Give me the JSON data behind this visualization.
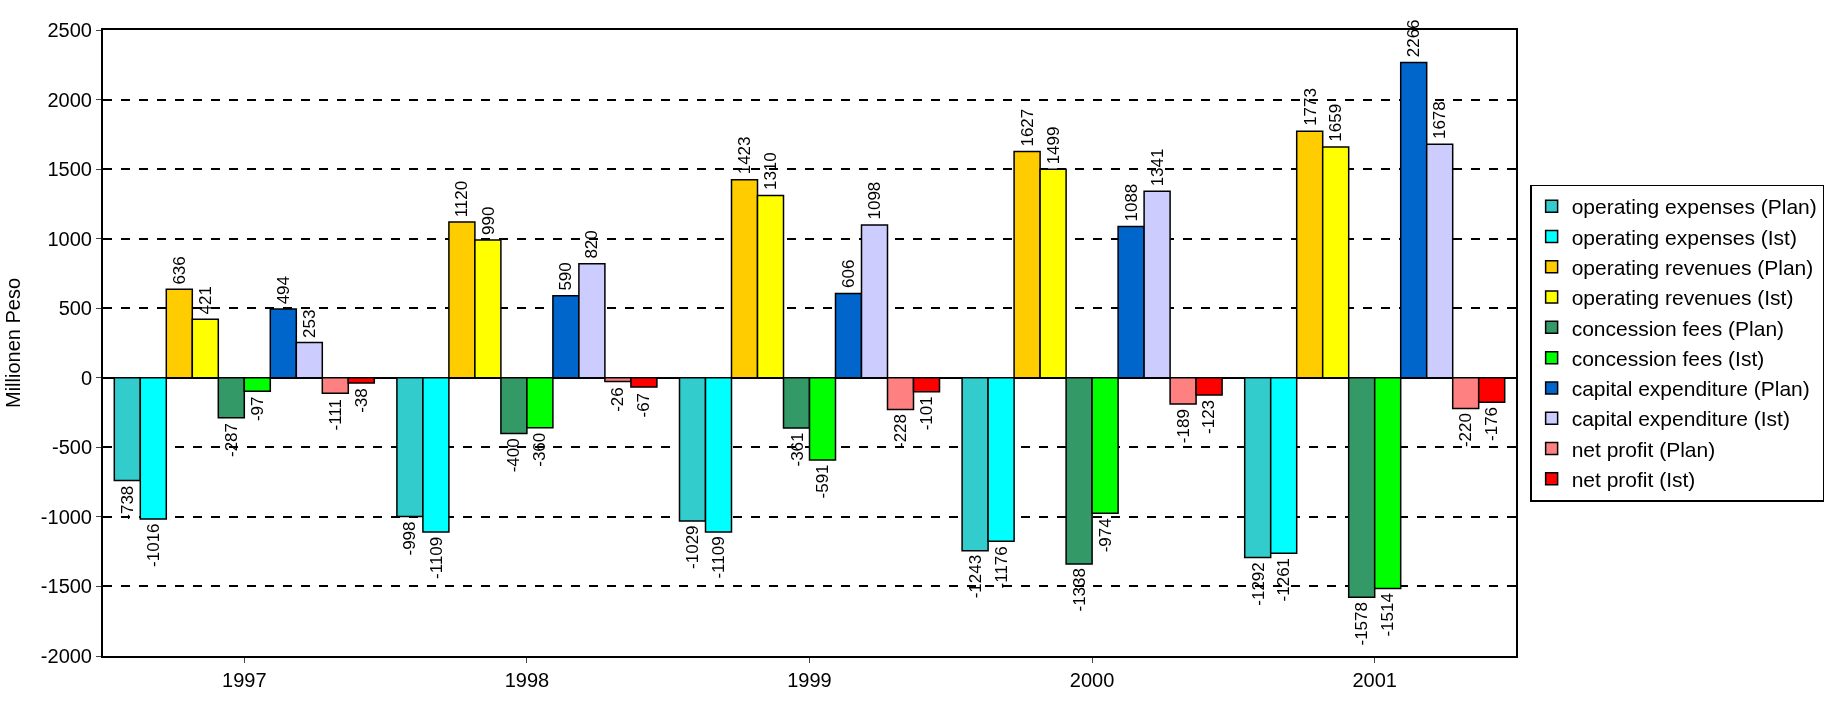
{
  "chart_data": {
    "type": "bar",
    "ylabel": "Millionen Peso",
    "categories": [
      "1997",
      "1998",
      "1999",
      "2000",
      "2001"
    ],
    "series": [
      {
        "name": "operating expenses (Plan)",
        "color": "#33cccc",
        "values": [
          -738,
          -998,
          -1029,
          -1243,
          -1292
        ]
      },
      {
        "name": "operating expenses (Ist)",
        "color": "#00ffff",
        "values": [
          -1016,
          -1109,
          -1109,
          -1176,
          -1261
        ]
      },
      {
        "name": "operating revenues (Plan)",
        "color": "#ffcc00",
        "values": [
          636,
          1120,
          1423,
          1627,
          1773
        ]
      },
      {
        "name": "operating revenues (Ist)",
        "color": "#ffff00",
        "values": [
          421,
          990,
          1310,
          1499,
          1659
        ]
      },
      {
        "name": "concession fees (Plan)",
        "color": "#339966",
        "values": [
          -287,
          -400,
          -361,
          -1338,
          -1578
        ]
      },
      {
        "name": "concession fees (Ist)",
        "color": "#00ff00",
        "values": [
          -97,
          -360,
          -591,
          -974,
          -1514
        ]
      },
      {
        "name": "capital expenditure (Plan)",
        "color": "#0066cc",
        "values": [
          494,
          590,
          606,
          1088,
          2266
        ]
      },
      {
        "name": "capital expenditure (Ist)",
        "color": "#ccccff",
        "values": [
          253,
          820,
          1098,
          1341,
          1678
        ]
      },
      {
        "name": "net profit (Plan)",
        "color": "#ff8080",
        "values": [
          -111,
          -26,
          -228,
          -189,
          -220
        ]
      },
      {
        "name": "net profit (Ist)",
        "color": "#ff0000",
        "values": [
          -38,
          -67,
          -101,
          -123,
          -176
        ]
      }
    ],
    "ylim": [
      -2000,
      2500
    ],
    "yticks": [
      -2000,
      -1500,
      -1000,
      -500,
      0,
      500,
      1000,
      1500,
      2000,
      2500
    ],
    "grid": "y",
    "legend": "right",
    "data_labels": true
  }
}
